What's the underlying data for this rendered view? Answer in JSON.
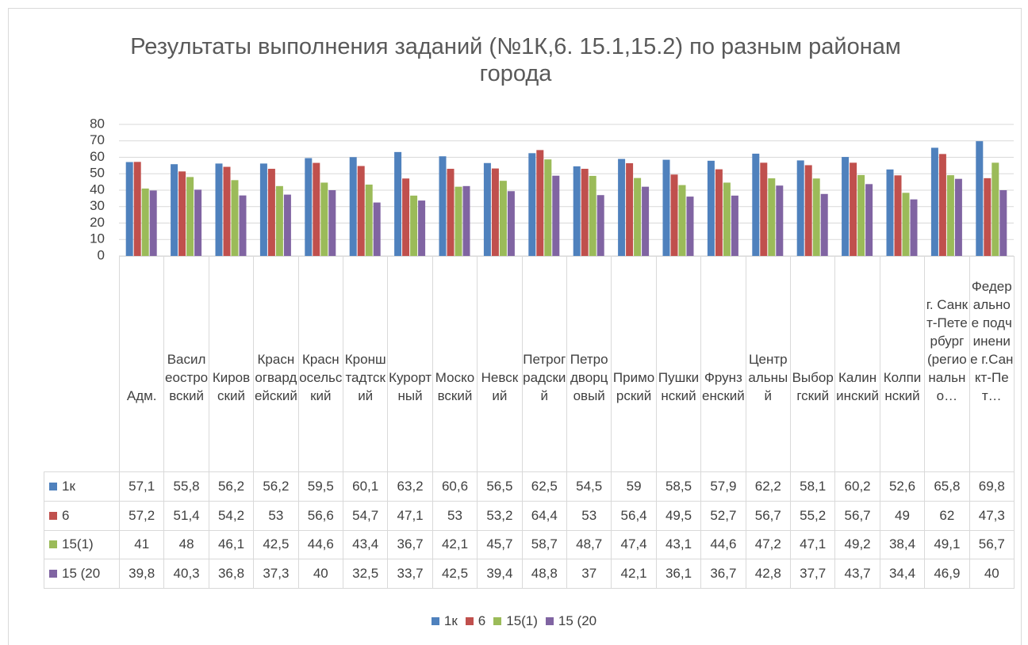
{
  "chart_data": {
    "type": "bar",
    "title": "Результаты выполнения заданий (№1К,6. 15.1,15.2) по разным районам города",
    "categories": [
      "Адм.",
      "Василеостровский",
      "Кировский",
      "Красногвардейский",
      "Красносельский",
      "Кронштадтский",
      "Курортный",
      "Московский",
      "Невский",
      "Петроградский",
      "Петродворцовый",
      "Приморский",
      "Пушкинский",
      "Фрунзенский",
      "Центральный",
      "Выборгский",
      "Калининский",
      "Колпинский",
      "г. Санкт-Петербург (регионально…",
      "Федеральное подчинение г.Санкт-Пет…"
    ],
    "series": [
      {
        "name": "1к",
        "color": "#4f81bd",
        "values": [
          57.1,
          55.8,
          56.2,
          56.2,
          59.5,
          60.1,
          63.2,
          60.6,
          56.5,
          62.5,
          54.5,
          59,
          58.5,
          57.9,
          62.2,
          58.1,
          60.2,
          52.6,
          65.8,
          69.8
        ],
        "value_labels": [
          "57,1",
          "55,8",
          "56,2",
          "56,2",
          "59,5",
          "60,1",
          "63,2",
          "60,6",
          "56,5",
          "62,5",
          "54,5",
          "59",
          "58,5",
          "57,9",
          "62,2",
          "58,1",
          "60,2",
          "52,6",
          "65,8",
          "69,8"
        ]
      },
      {
        "name": "6",
        "color": "#c0504d",
        "values": [
          57.2,
          51.4,
          54.2,
          53,
          56.6,
          54.7,
          47.1,
          53,
          53.2,
          64.4,
          53,
          56.4,
          49.5,
          52.7,
          56.7,
          55.2,
          56.7,
          49,
          62,
          47.3
        ],
        "value_labels": [
          "57,2",
          "51,4",
          "54,2",
          "53",
          "56,6",
          "54,7",
          "47,1",
          "53",
          "53,2",
          "64,4",
          "53",
          "56,4",
          "49,5",
          "52,7",
          "56,7",
          "55,2",
          "56,7",
          "49",
          "62",
          "47,3"
        ]
      },
      {
        "name": "15(1)",
        "color": "#9bbb59",
        "values": [
          41,
          48,
          46.1,
          42.5,
          44.6,
          43.4,
          36.7,
          42.1,
          45.7,
          58.7,
          48.7,
          47.4,
          43.1,
          44.6,
          47.2,
          47.1,
          49.2,
          38.4,
          49.1,
          56.7
        ],
        "value_labels": [
          "41",
          "48",
          "46,1",
          "42,5",
          "44,6",
          "43,4",
          "36,7",
          "42,1",
          "45,7",
          "58,7",
          "48,7",
          "47,4",
          "43,1",
          "44,6",
          "47,2",
          "47,1",
          "49,2",
          "38,4",
          "49,1",
          "56,7"
        ]
      },
      {
        "name": "15 (20",
        "color": "#8064a2",
        "values": [
          39.8,
          40.3,
          36.8,
          37.3,
          40,
          32.5,
          33.7,
          42.5,
          39.4,
          48.8,
          37,
          42.1,
          36.1,
          36.7,
          42.8,
          37.7,
          43.7,
          34.4,
          46.9,
          40
        ],
        "value_labels": [
          "39,8",
          "40,3",
          "36,8",
          "37,3",
          "40",
          "32,5",
          "33,7",
          "42,5",
          "39,4",
          "48,8",
          "37",
          "42,1",
          "36,1",
          "36,7",
          "42,8",
          "37,7",
          "43,7",
          "34,4",
          "46,9",
          "40"
        ]
      }
    ],
    "ylim": [
      0,
      80
    ],
    "yticks": [
      0,
      10,
      20,
      30,
      40,
      50,
      60,
      70,
      80
    ],
    "grid": true,
    "legend": "bottom"
  }
}
